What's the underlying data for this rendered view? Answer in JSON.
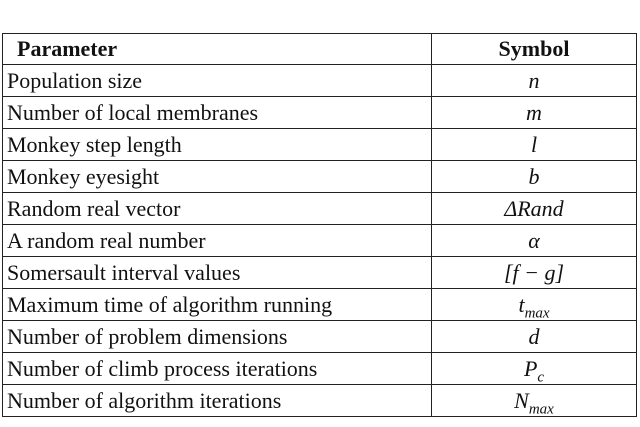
{
  "table": {
    "header": [
      "Parameter",
      "Symbol"
    ],
    "rows": [
      [
        "Population size",
        {
          "base": "n"
        }
      ],
      [
        "Number of local membranes",
        {
          "base": "m"
        }
      ],
      [
        "Monkey step length",
        {
          "base": "l"
        }
      ],
      [
        "Monkey eyesight",
        {
          "base": "b"
        }
      ],
      [
        "Random real vector",
        {
          "base": "ΔRand"
        }
      ],
      [
        "A random real number",
        {
          "base": "α"
        }
      ],
      [
        "Somersault interval values",
        {
          "base": "[f − g]"
        }
      ],
      [
        "Maximum time of algorithm running",
        {
          "base": "t",
          "sub": "max"
        }
      ],
      [
        "Number of problem dimensions",
        {
          "base": "d"
        }
      ],
      [
        "Number of climb process iterations",
        {
          "base": "P",
          "sub": "c"
        }
      ],
      [
        "Number of algorithm iterations",
        {
          "base": "N",
          "sub": "max"
        }
      ]
    ]
  }
}
